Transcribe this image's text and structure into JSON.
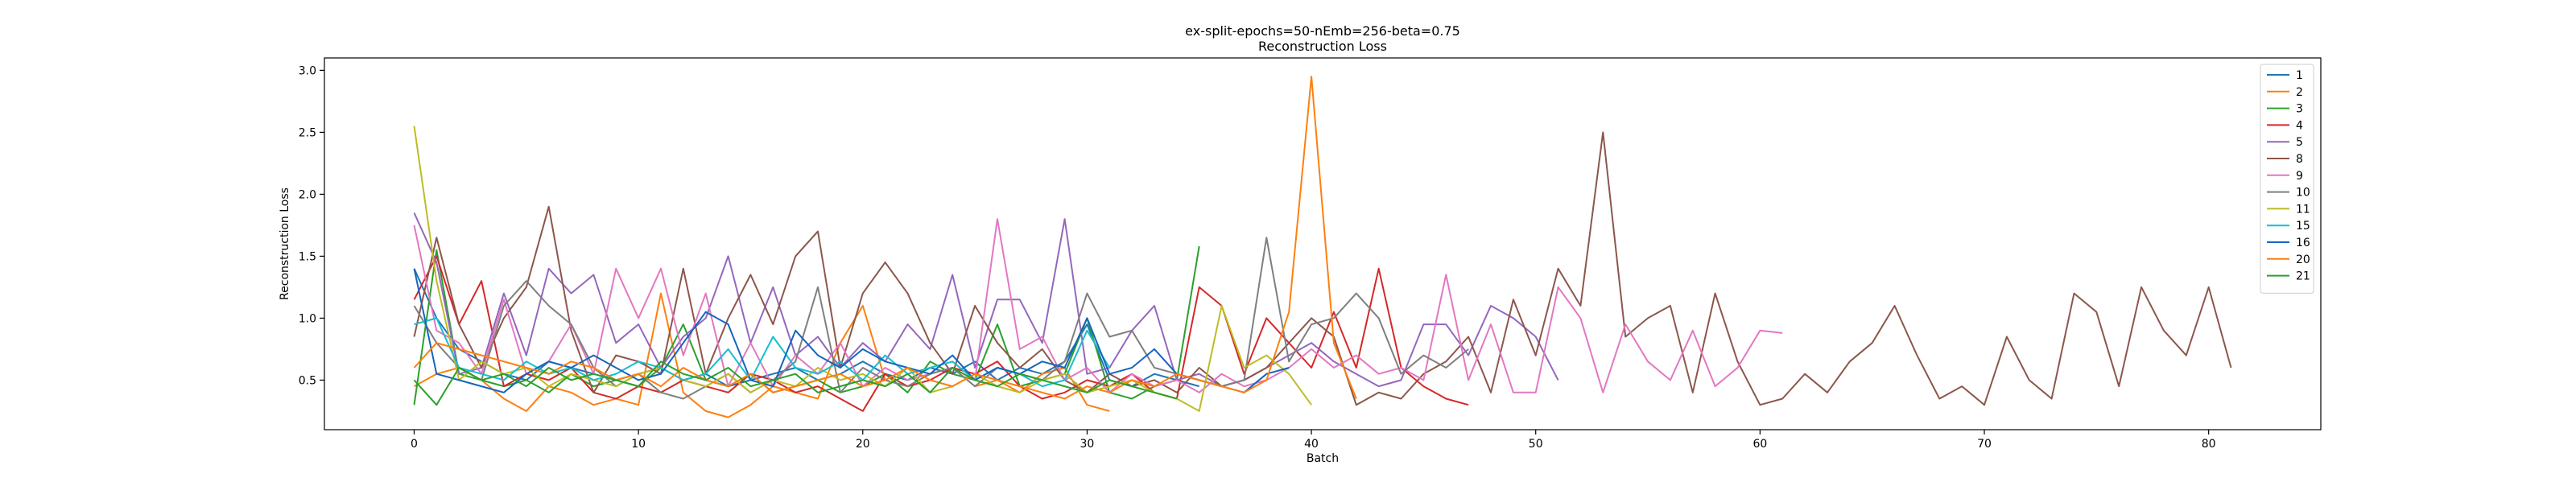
{
  "chart_data": {
    "type": "line",
    "title": "ex-split-epochs=50-nEmb=256-beta=0.75",
    "subtitle": "Reconstruction Loss",
    "xlabel": "Batch",
    "ylabel": "Reconstruction Loss",
    "xlim": [
      -4,
      85
    ],
    "ylim": [
      0.1,
      3.1
    ],
    "xticks": [
      0,
      10,
      20,
      30,
      40,
      50,
      60,
      70,
      80
    ],
    "yticks": [
      0.5,
      1.0,
      1.5,
      2.0,
      2.5,
      3.0
    ],
    "ytick_labels": [
      "0.5",
      "1.0",
      "1.5",
      "2.0",
      "2.5",
      "3.0"
    ],
    "legend_position": "top-right",
    "series": [
      {
        "name": "1",
        "color": "#1f77b4",
        "values": [
          1.4,
          1.0,
          0.75,
          0.65,
          0.55,
          0.5,
          0.65,
          0.6,
          0.55,
          0.5,
          0.55,
          0.6,
          0.5,
          0.55,
          0.45,
          0.5,
          0.55,
          0.6,
          0.5,
          0.55,
          0.65,
          0.55,
          0.5,
          0.6,
          0.55,
          0.65,
          0.5,
          0.6,
          0.55,
          0.65,
          0.95,
          0.5,
          0.45,
          0.55,
          0.5,
          0.45
        ]
      },
      {
        "name": "2",
        "color": "#ff7f0e",
        "values": [
          0.45,
          0.55,
          0.6,
          0.5,
          0.35,
          0.25,
          0.45,
          0.4,
          0.3,
          0.35,
          0.3,
          1.2,
          0.4,
          0.25,
          0.2,
          0.3,
          0.45,
          0.4,
          0.35,
          0.8,
          1.1,
          0.5,
          0.45,
          0.55,
          0.6,
          0.45,
          0.5,
          0.4,
          0.55,
          0.6,
          0.3,
          0.25
        ]
      },
      {
        "name": "3",
        "color": "#2ca02c",
        "values": [
          0.3,
          1.55,
          0.55,
          0.5,
          0.45,
          0.5,
          0.4,
          0.55,
          0.45,
          0.5,
          0.45,
          0.6,
          0.95,
          0.5,
          0.45,
          0.55,
          0.4,
          0.45,
          0.5,
          0.4,
          0.45,
          0.55,
          0.4,
          0.65,
          0.55,
          0.5,
          0.95,
          0.45,
          0.5,
          0.55,
          1.0,
          0.4,
          0.35,
          0.45,
          0.5,
          1.58
        ]
      },
      {
        "name": "4",
        "color": "#d62728",
        "values": [
          1.15,
          1.5,
          0.95,
          1.3,
          0.45,
          0.55,
          0.5,
          0.6,
          0.4,
          0.35,
          0.45,
          0.4,
          0.5,
          0.45,
          0.4,
          0.55,
          0.5,
          0.4,
          0.45,
          0.35,
          0.25,
          0.55,
          0.45,
          0.5,
          0.6,
          0.55,
          0.65,
          0.45,
          0.35,
          0.4,
          0.5,
          0.45,
          0.55,
          0.4,
          0.35,
          1.25,
          1.1,
          0.55,
          1.0,
          0.8,
          0.6,
          1.05,
          0.6,
          1.4,
          0.6,
          0.45,
          0.35,
          0.3
        ]
      },
      {
        "name": "5",
        "color": "#9467bd",
        "values": [
          1.85,
          1.45,
          0.55,
          0.6,
          1.2,
          0.7,
          1.4,
          1.2,
          1.35,
          0.8,
          0.95,
          0.6,
          0.85,
          1.0,
          1.5,
          0.8,
          1.25,
          0.7,
          0.85,
          0.6,
          0.8,
          0.65,
          0.95,
          0.75,
          1.35,
          0.6,
          1.15,
          1.15,
          0.8,
          1.8,
          0.55,
          0.6,
          0.9,
          1.1,
          0.5,
          0.55,
          0.45,
          0.5,
          0.6,
          0.7,
          0.8,
          0.65,
          0.55,
          0.45,
          0.5,
          0.95,
          0.95,
          0.7,
          1.1,
          1.0,
          0.85,
          0.5
        ]
      },
      {
        "name": "8",
        "color": "#8c564b",
        "values": [
          0.85,
          1.65,
          0.95,
          0.6,
          1.0,
          1.25,
          1.9,
          0.9,
          0.4,
          0.7,
          0.65,
          0.55,
          1.4,
          0.55,
          1.0,
          1.35,
          0.95,
          1.5,
          1.7,
          0.6,
          1.2,
          1.45,
          1.2,
          0.8,
          0.55,
          1.1,
          0.8,
          0.6,
          0.75,
          0.5,
          0.4,
          0.55,
          0.45,
          0.5,
          0.4,
          0.6,
          0.45,
          0.5,
          0.6,
          0.8,
          1.0,
          0.85,
          0.3,
          0.4,
          0.35,
          0.55,
          0.65,
          0.85,
          0.4,
          1.15,
          0.7,
          1.4,
          1.1,
          2.5,
          0.85,
          1.0,
          1.1,
          0.4,
          1.2,
          0.65,
          0.3,
          0.35,
          0.55,
          0.4,
          0.65,
          0.8,
          1.1,
          0.7,
          0.35,
          0.45,
          0.3,
          0.85,
          0.5,
          0.35,
          1.2,
          1.05,
          0.45,
          1.25,
          0.9,
          0.7,
          1.25,
          0.6
        ]
      },
      {
        "name": "9",
        "color": "#e377c2",
        "values": [
          1.75,
          0.9,
          0.8,
          0.55,
          1.15,
          0.55,
          0.65,
          0.95,
          0.55,
          1.4,
          1.0,
          1.4,
          0.7,
          1.2,
          0.45,
          0.8,
          0.45,
          0.7,
          0.55,
          0.8,
          0.45,
          0.6,
          0.5,
          0.55,
          0.6,
          0.5,
          1.8,
          0.75,
          0.85,
          0.5,
          0.6,
          0.4,
          0.55,
          0.45,
          0.5,
          0.4,
          0.55,
          0.45,
          0.5,
          0.6,
          0.75,
          0.6,
          0.7,
          0.55,
          0.6,
          0.5,
          1.35,
          0.5,
          0.95,
          0.4,
          0.4,
          1.25,
          1.0,
          0.4,
          0.95,
          0.65,
          0.5,
          0.9,
          0.45,
          0.6,
          0.9,
          0.88
        ]
      },
      {
        "name": "10",
        "color": "#7f7f7f",
        "values": [
          1.1,
          0.8,
          0.6,
          0.5,
          1.1,
          1.3,
          1.1,
          0.95,
          0.6,
          0.45,
          0.55,
          0.4,
          0.35,
          0.45,
          0.55,
          0.4,
          0.5,
          0.65,
          1.25,
          0.4,
          0.6,
          0.5,
          0.45,
          0.55,
          0.6,
          0.45,
          0.6,
          0.55,
          0.5,
          0.65,
          1.2,
          0.85,
          0.9,
          0.6,
          0.55,
          0.5,
          0.45,
          0.5,
          1.65,
          0.65,
          0.95,
          1.0,
          1.2,
          1.0,
          0.55,
          0.7,
          0.6,
          0.75
        ]
      },
      {
        "name": "11",
        "color": "#bcbd22",
        "values": [
          2.55,
          1.3,
          0.5,
          0.65,
          0.55,
          0.6,
          0.45,
          0.55,
          0.5,
          0.45,
          0.55,
          0.6,
          0.5,
          0.45,
          0.55,
          0.4,
          0.5,
          0.45,
          0.6,
          0.5,
          0.55,
          0.45,
          0.6,
          0.4,
          0.45,
          0.55,
          0.45,
          0.4,
          0.5,
          0.55,
          0.4,
          0.45,
          0.5,
          0.4,
          0.35,
          0.25,
          1.1,
          0.6,
          0.7,
          0.55,
          0.3
        ]
      },
      {
        "name": "15",
        "color": "#17becf",
        "values": [
          0.95,
          1.0,
          0.6,
          0.55,
          0.5,
          0.65,
          0.55,
          0.6,
          0.5,
          0.55,
          0.65,
          0.6,
          0.5,
          0.55,
          0.75,
          0.5,
          0.85,
          0.6,
          0.55,
          0.65,
          0.5,
          0.7,
          0.55,
          0.6,
          0.65,
          0.5,
          0.6,
          0.55,
          0.45,
          0.5,
          0.9,
          0.6
        ]
      },
      {
        "name": "16",
        "color": "#1565c0",
        "values": [
          1.4,
          0.55,
          0.5,
          0.45,
          0.4,
          0.55,
          0.65,
          0.6,
          0.7,
          0.6,
          0.5,
          0.55,
          0.8,
          1.05,
          0.95,
          0.5,
          0.45,
          0.9,
          0.7,
          0.6,
          0.75,
          0.65,
          0.6,
          0.55,
          0.7,
          0.5,
          0.6,
          0.55,
          0.65,
          0.6,
          1.0,
          0.55,
          0.6,
          0.75,
          0.55,
          0.5,
          0.45,
          0.4,
          0.55,
          0.6
        ]
      },
      {
        "name": "20",
        "color": "#ff7f0e",
        "values": [
          0.6,
          0.8,
          0.75,
          0.7,
          0.65,
          0.6,
          0.55,
          0.65,
          0.6,
          0.5,
          0.55,
          0.45,
          0.6,
          0.5,
          0.45,
          0.55,
          0.4,
          0.45,
          0.5,
          0.55,
          0.45,
          0.5,
          0.6,
          0.5,
          0.45,
          0.55,
          0.5,
          0.45,
          0.4,
          0.35,
          0.45,
          0.4,
          0.5,
          0.45,
          0.55,
          0.5,
          0.45,
          0.4,
          0.5,
          1.05,
          2.95,
          0.8,
          0.35
        ]
      },
      {
        "name": "21",
        "color": "#2ca02c",
        "values": [
          0.5,
          0.3,
          0.6,
          0.5,
          0.55,
          0.45,
          0.6,
          0.5,
          0.55,
          0.5,
          0.45,
          0.65,
          0.55,
          0.5,
          0.6,
          0.45,
          0.5,
          0.55,
          0.4,
          0.45,
          0.5,
          0.45,
          0.55,
          0.4,
          0.6,
          0.5,
          0.45,
          0.55,
          0.5,
          0.45,
          0.4,
          0.5,
          0.45,
          0.4,
          0.35
        ]
      }
    ]
  }
}
